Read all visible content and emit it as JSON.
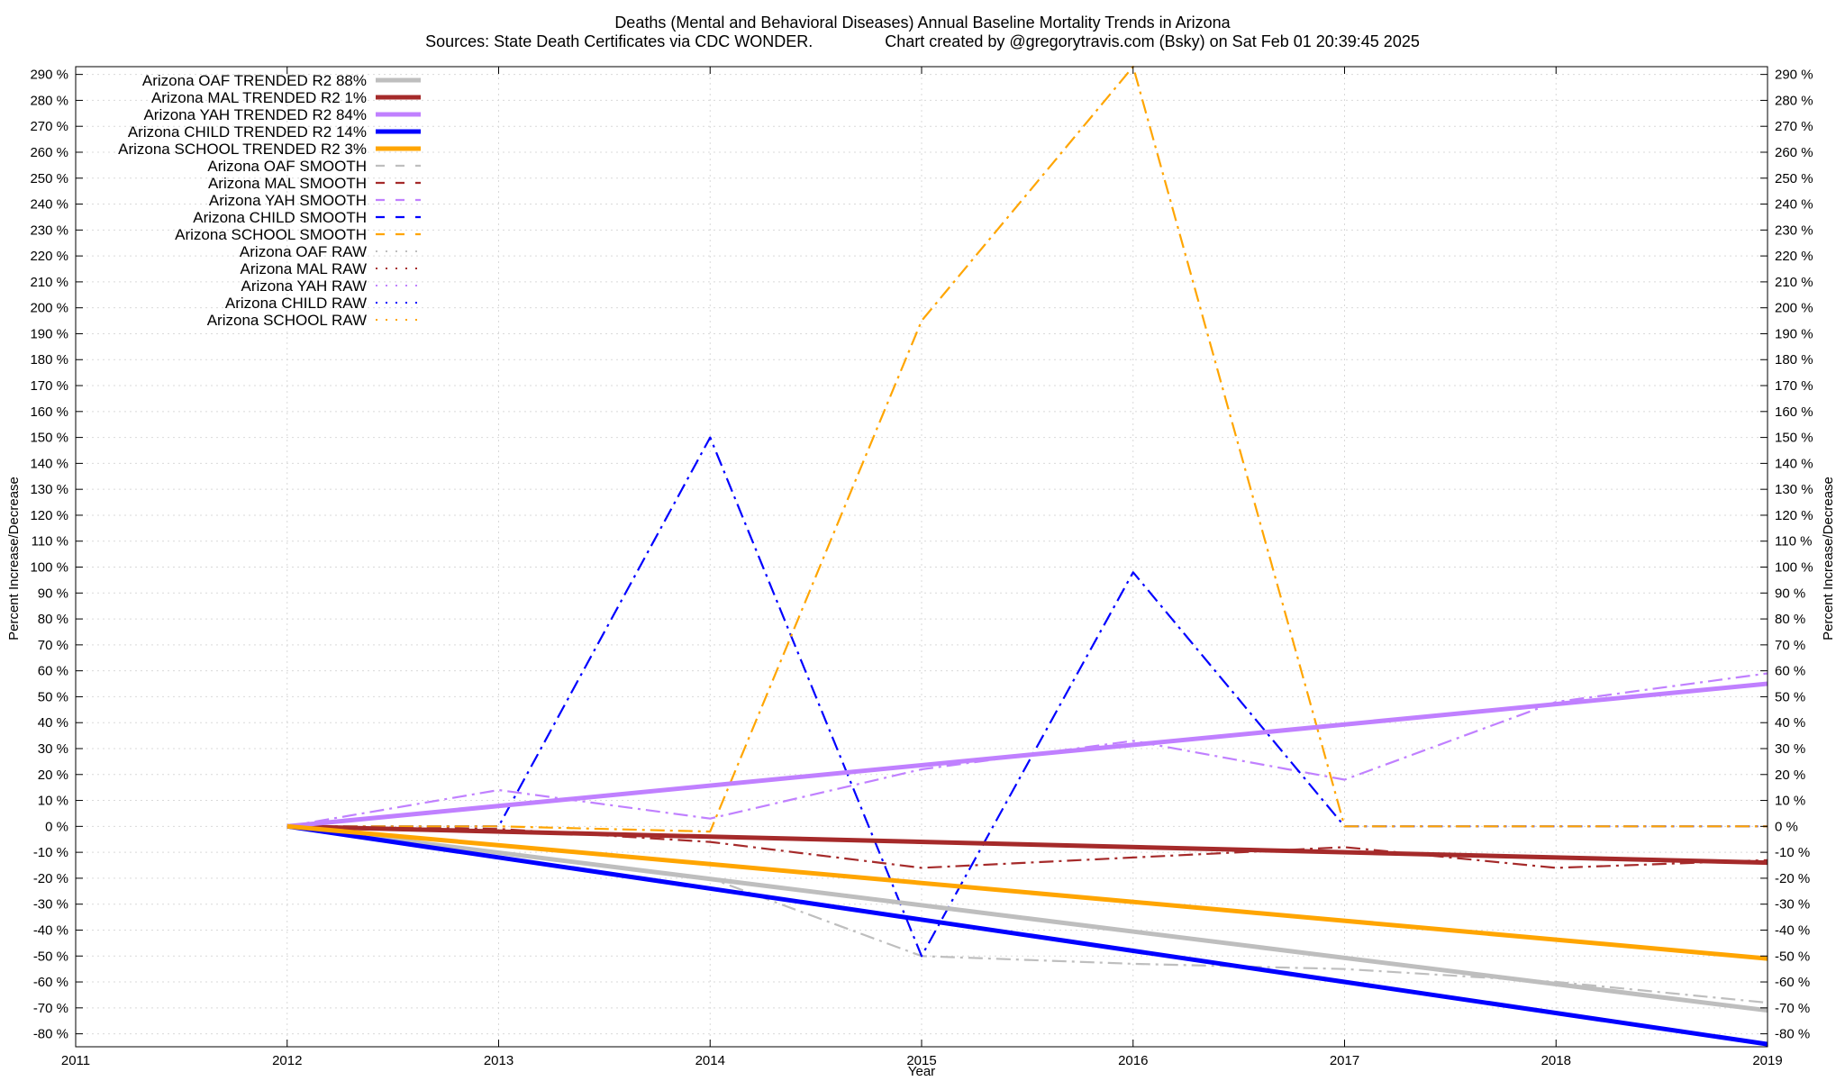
{
  "chart_data": {
    "type": "line",
    "title": "Deaths (Mental and Behavioral Diseases)  Annual Baseline Mortality Trends in Arizona",
    "subtitle": "Sources: State Death Certificates via CDC WONDER.                Chart created by @gregorytravis.com (Bsky) on Sat Feb 01 20:39:45 2025",
    "xlabel": "Year",
    "ylabel": "Percent Increase/Decrease",
    "y2label": "Percent Increase/Decrease",
    "xlim": [
      2011,
      2019
    ],
    "ylim": [
      -85,
      293
    ],
    "x_ticks": [
      2011,
      2012,
      2013,
      2014,
      2015,
      2016,
      2017,
      2018,
      2019
    ],
    "x_tick_labels": [
      "2011",
      "2012",
      "2013",
      "2014",
      "2015",
      "2016",
      "2017",
      "2018",
      "2019"
    ],
    "y_ticks": [
      -80,
      -70,
      -60,
      -50,
      -40,
      -30,
      -20,
      -10,
      0,
      10,
      20,
      30,
      40,
      50,
      60,
      70,
      80,
      90,
      100,
      110,
      120,
      130,
      140,
      150,
      160,
      170,
      180,
      190,
      200,
      210,
      220,
      230,
      240,
      250,
      260,
      270,
      280,
      290
    ],
    "y_tick_labels": [
      "-80 %",
      "-70 %",
      "-60 %",
      "-50 %",
      "-40 %",
      "-30 %",
      "-20 %",
      "-10 %",
      "0 %",
      "10 %",
      "20 %",
      "30 %",
      "40 %",
      "50 %",
      "60 %",
      "70 %",
      "80 %",
      "90 %",
      "100 %",
      "110 %",
      "120 %",
      "130 %",
      "140 %",
      "150 %",
      "160 %",
      "170 %",
      "180 %",
      "190 %",
      "200 %",
      "210 %",
      "220 %",
      "230 %",
      "240 %",
      "250 %",
      "260 %",
      "270 %",
      "280 %",
      "290 %"
    ],
    "grid": true,
    "legend_position": "top-left",
    "series": [
      {
        "name": "Arizona OAF TRENDED R2  88%",
        "style": "trend",
        "color": "#bebebe",
        "x": [
          2012,
          2019
        ],
        "y": [
          0,
          -71
        ]
      },
      {
        "name": "Arizona MAL TRENDED R2   1%",
        "style": "trend",
        "color": "#a52a2a",
        "x": [
          2012,
          2019
        ],
        "y": [
          0,
          -14
        ]
      },
      {
        "name": "Arizona YAH TRENDED R2  84%",
        "style": "trend",
        "color": "#c080ff",
        "x": [
          2012,
          2019
        ],
        "y": [
          0,
          55
        ]
      },
      {
        "name": "Arizona CHILD TRENDED R2  14%",
        "style": "trend",
        "color": "#0000ff",
        "x": [
          2012,
          2019
        ],
        "y": [
          0,
          -84
        ]
      },
      {
        "name": "Arizona SCHOOL TRENDED R2   3%",
        "style": "trend",
        "color": "#ffa500",
        "x": [
          2012,
          2019
        ],
        "y": [
          0,
          -51
        ]
      },
      {
        "name": "Arizona OAF SMOOTH",
        "style": "smooth",
        "color": "#bebebe",
        "x": [
          2012,
          2013,
          2014,
          2015,
          2016,
          2017,
          2018,
          2019
        ],
        "y": [
          0,
          -10,
          -20,
          -50,
          -53,
          -55,
          -60,
          -68
        ]
      },
      {
        "name": "Arizona MAL SMOOTH",
        "style": "smooth",
        "color": "#a52a2a",
        "x": [
          2012,
          2013,
          2014,
          2015,
          2016,
          2017,
          2018,
          2019
        ],
        "y": [
          0,
          -1,
          -6,
          -16,
          -12,
          -8,
          -16,
          -13
        ]
      },
      {
        "name": "Arizona YAH SMOOTH",
        "style": "smooth",
        "color": "#c080ff",
        "x": [
          2012,
          2013,
          2014,
          2015,
          2016,
          2017,
          2018,
          2019
        ],
        "y": [
          0,
          14,
          3,
          22,
          33,
          18,
          48,
          59
        ]
      },
      {
        "name": "Arizona CHILD SMOOTH",
        "style": "smooth",
        "color": "#0000ff",
        "x": [
          2012,
          2013,
          2014,
          2015,
          2016,
          2017,
          2018,
          2019
        ],
        "y": [
          0,
          0,
          150,
          -50,
          98,
          0,
          0,
          0
        ]
      },
      {
        "name": "Arizona SCHOOL SMOOTH",
        "style": "smooth",
        "color": "#ffa500",
        "x": [
          2012,
          2013,
          2014,
          2015,
          2016,
          2017,
          2018,
          2019
        ],
        "y": [
          0,
          0,
          -2,
          195,
          293,
          0,
          0,
          0
        ]
      },
      {
        "name": "Arizona OAF RAW",
        "style": "raw",
        "color": "#bebebe",
        "x": [],
        "y": []
      },
      {
        "name": "Arizona MAL RAW",
        "style": "raw",
        "color": "#a52a2a",
        "x": [],
        "y": []
      },
      {
        "name": "Arizona YAH RAW",
        "style": "raw",
        "color": "#c080ff",
        "x": [],
        "y": []
      },
      {
        "name": "Arizona CHILD RAW",
        "style": "raw",
        "color": "#0000ff",
        "x": [],
        "y": []
      },
      {
        "name": "Arizona SCHOOL RAW",
        "style": "raw",
        "color": "#ffa500",
        "x": [],
        "y": []
      }
    ]
  }
}
